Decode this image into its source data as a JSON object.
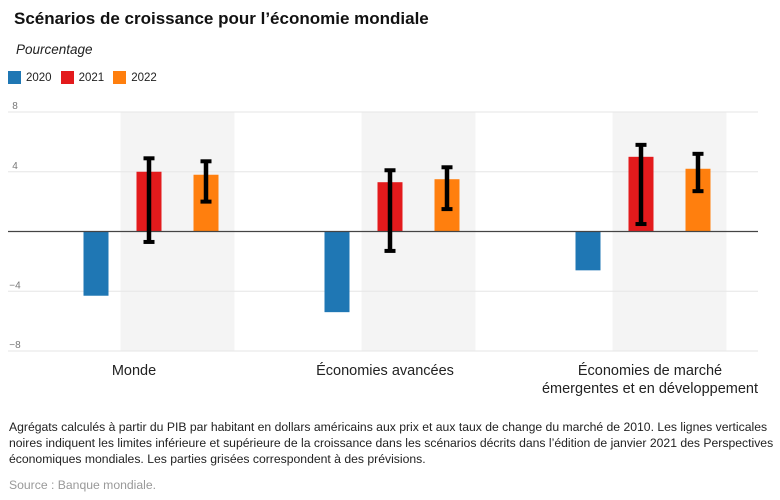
{
  "title": "Scénarios de croissance pour l’économie mondiale",
  "subtitle": "Pourcentage",
  "legend": [
    {
      "label": "2020",
      "color": "#1f77b4"
    },
    {
      "label": "2021",
      "color": "#e31a1c"
    },
    {
      "label": "2022",
      "color": "#ff7f0e"
    }
  ],
  "chart_data": {
    "type": "bar",
    "categories": [
      "Monde",
      "Économies avancées",
      "Économies de marché émergentes et en développement"
    ],
    "category_lines": [
      [
        "Monde"
      ],
      [
        "Économies avancées"
      ],
      [
        "Économies de marché",
        "émergentes et en développement"
      ]
    ],
    "series": [
      {
        "name": "2020",
        "color": "#1f77b4",
        "values": [
          -4.3,
          -5.4,
          -2.6
        ]
      },
      {
        "name": "2021",
        "color": "#e31a1c",
        "values": [
          4.0,
          3.3,
          5.0
        ]
      },
      {
        "name": "2022",
        "color": "#ff7f0e",
        "values": [
          3.8,
          3.5,
          4.2
        ]
      }
    ],
    "ranges": [
      {
        "series": "2021",
        "low": [
          -0.7,
          -1.3,
          0.5
        ],
        "high": [
          4.9,
          4.1,
          5.8
        ]
      },
      {
        "series": "2022",
        "low": [
          2.0,
          1.5,
          2.7
        ],
        "high": [
          4.7,
          4.3,
          5.2
        ]
      }
    ],
    "forecast_shading": "2021–2022",
    "yticks": [
      -8,
      -4,
      0,
      4,
      8
    ],
    "ytick_labels": [
      "−8",
      "−4",
      "",
      "4",
      "8"
    ],
    "ylim": [
      -8,
      8
    ],
    "xlabel": "",
    "ylabel": ""
  },
  "notes": "Agrégats calculés à partir du PIB par habitant en dollars américains aux prix et aux taux de change du marché de 2010. Les lignes verticales noires indiquent les limites inférieure et supérieure de la croissance dans les scénarios décrits dans l’édition de janvier 2021 des Perspectives économiques mondiales. Les parties grisées correspondent à des prévisions.",
  "source": "Source : Banque mondiale."
}
